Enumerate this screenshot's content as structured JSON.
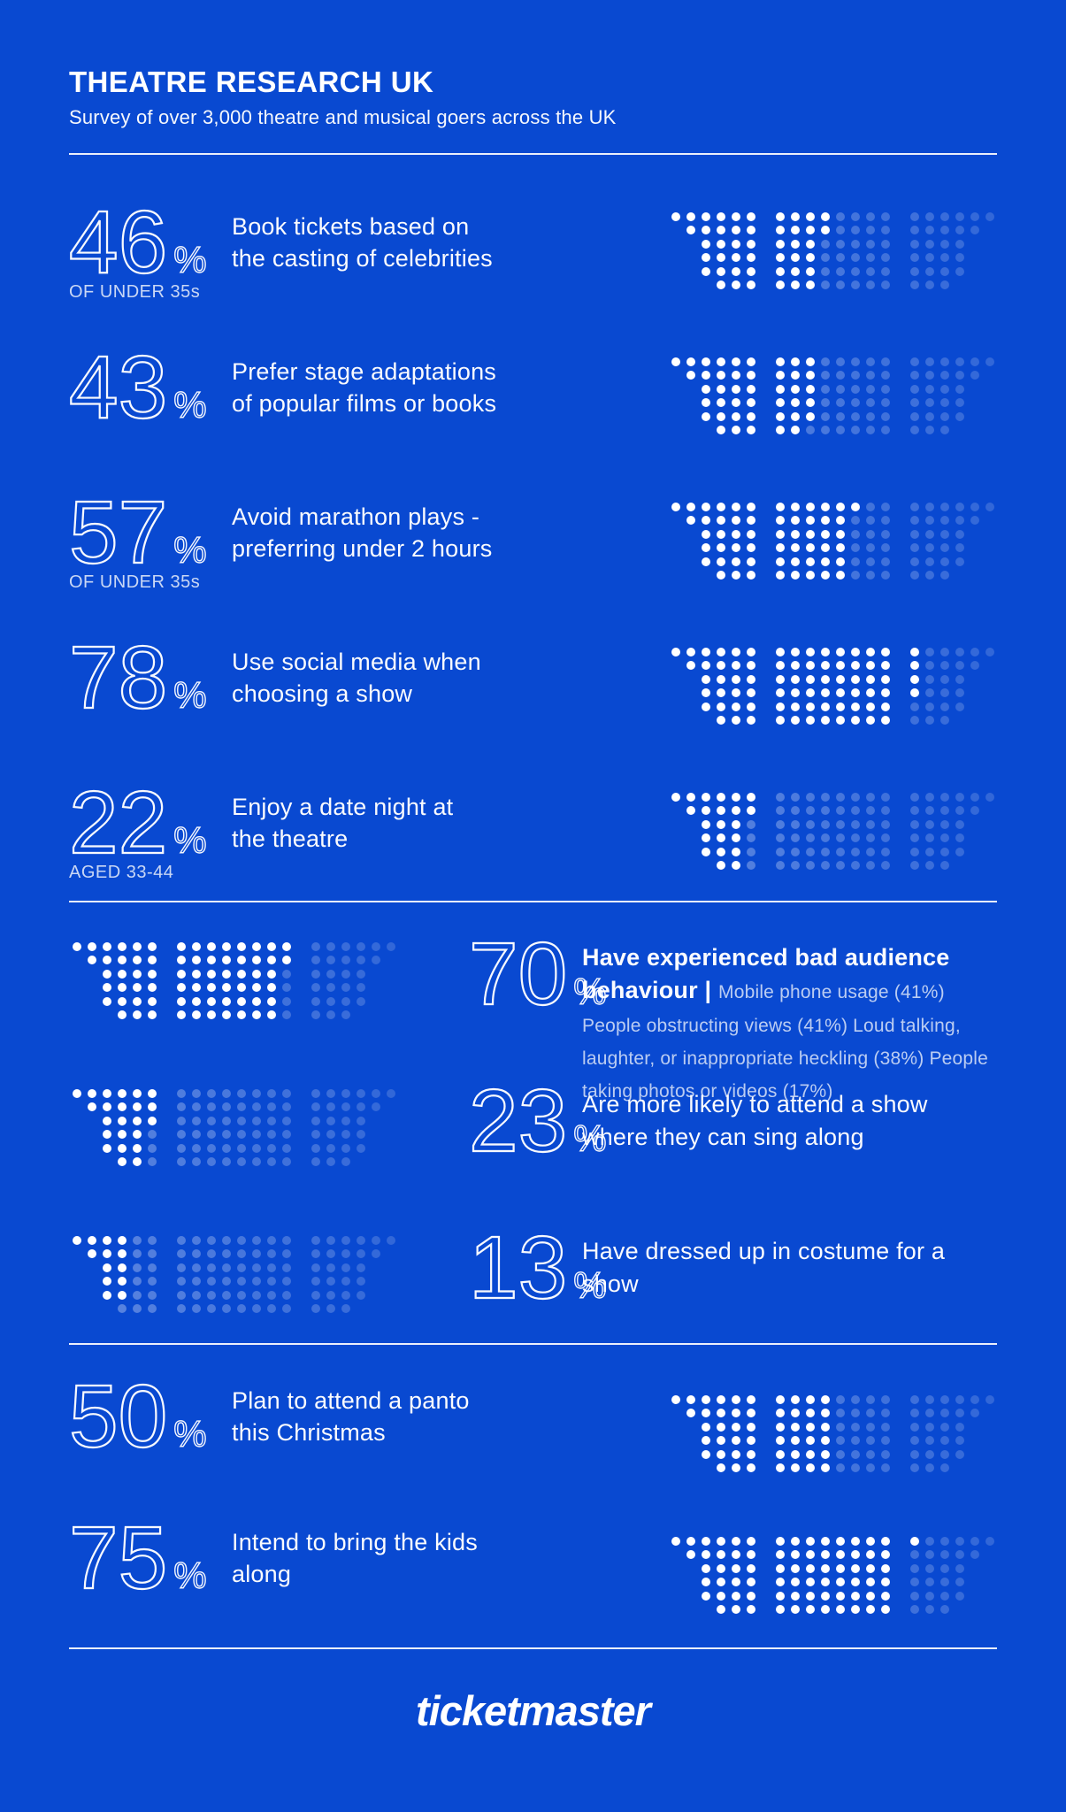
{
  "header": {
    "title": "THEATRE RESEARCH UK",
    "subtitle": "Survey of over 3,000 theatre and musical goers across the UK"
  },
  "footer": {
    "brand": "ticketmaster"
  },
  "colors": {
    "background": "#0949D1",
    "text": "#FFFFFF",
    "filled_dot": "#FFFFFF",
    "faded_dot_base_opacity": 0.34
  },
  "chart_data": {
    "type": "pictogram",
    "title": "THEATRE RESEARCH UK",
    "subtitle": "Survey of over 3,000 theatre and musical goers across the UK",
    "note": "Each dot matrix contains 100 dots arranged in 3 seating-style blocks (26 + 48 + 26); white dots = percentage value, remaining dots faded",
    "matrix": {
      "total_dots": 100,
      "rows": 6,
      "groups": [
        {
          "cols": 6,
          "left_indent_per_row": [
            0,
            1,
            2,
            2,
            2,
            3
          ]
        },
        {
          "cols": 8,
          "full": true
        },
        {
          "cols": 6,
          "row_lengths": [
            6,
            5,
            4,
            4,
            4,
            3
          ]
        }
      ],
      "fill_order": "column-major left to right, top to bottom"
    },
    "sections": [
      {
        "id": "top",
        "rows": [
          {
            "value": 46,
            "unit": "%",
            "caption": "OF UNDER 35s",
            "label": "Book tickets based on\nthe casting of celebrities",
            "dots": "right"
          },
          {
            "value": 43,
            "unit": "%",
            "caption": "",
            "label": "Prefer stage adaptations\nof popular films or books",
            "dots": "right"
          },
          {
            "value": 57,
            "unit": "%",
            "caption": "OF UNDER 35s",
            "label": "Avoid marathon plays -\npreferring under 2 hours",
            "dots": "right"
          },
          {
            "value": 78,
            "unit": "%",
            "caption": "",
            "label": "Use social media when\nchoosing a show",
            "dots": "right"
          },
          {
            "value": 22,
            "unit": "%",
            "caption": "AGED 33-44",
            "label": "Enjoy a date night at\nthe theatre",
            "dots": "right"
          }
        ]
      },
      {
        "id": "middle",
        "rows": [
          {
            "value": 70,
            "unit": "%",
            "caption": "",
            "label_bold": "Have experienced bad audience behaviour |",
            "label_detail": "Mobile phone usage (41%) People obstructing views (41%) Loud talking, laughter, or inappropriate heckling (38%) People taking photos or videos (17%)",
            "dots": "left"
          },
          {
            "value": 23,
            "unit": "%",
            "caption": "",
            "label": "Are more likely to attend a show\nwhere they can sing along",
            "dots": "left"
          },
          {
            "value": 13,
            "unit": "%",
            "caption": "",
            "label": "Have dressed up in costume\nfor a show",
            "dots": "left"
          }
        ]
      },
      {
        "id": "bottom",
        "rows": [
          {
            "value": 50,
            "unit": "%",
            "caption": "",
            "label": "Plan to attend a panto\nthis Christmas",
            "dots": "right"
          },
          {
            "value": 75,
            "unit": "%",
            "caption": "",
            "label": "Intend to bring the kids\nalong",
            "dots": "right"
          }
        ]
      }
    ]
  }
}
